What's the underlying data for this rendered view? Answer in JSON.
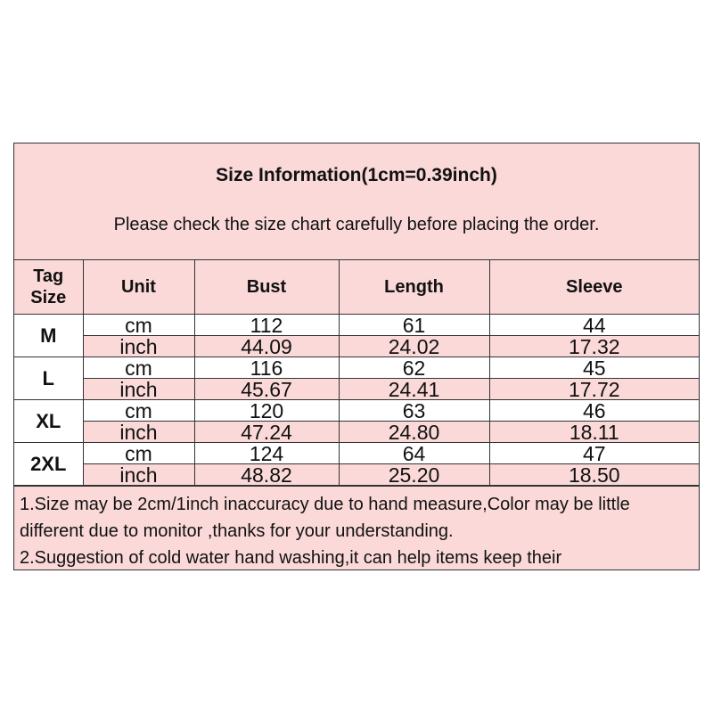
{
  "title": "Size Information(1cm=0.39inch)",
  "subtitle": "Please check the size chart carefully before placing the order.",
  "columns": [
    "Tag Size",
    "Unit",
    "Bust",
    "Length",
    "Sleeve"
  ],
  "rows": [
    {
      "size": "M",
      "cm": [
        "cm",
        "112",
        "61",
        "44"
      ],
      "inch": [
        "inch",
        "44.09",
        "24.02",
        "17.32"
      ]
    },
    {
      "size": "L",
      "cm": [
        "cm",
        "116",
        "62",
        "45"
      ],
      "inch": [
        "inch",
        "45.67",
        "24.41",
        "17.72"
      ]
    },
    {
      "size": "XL",
      "cm": [
        "cm",
        "120",
        "63",
        "46"
      ],
      "inch": [
        "inch",
        "47.24",
        "24.80",
        "18.11"
      ]
    },
    {
      "size": "2XL",
      "cm": [
        "cm",
        "124",
        "64",
        "47"
      ],
      "inch": [
        "inch",
        "48.82",
        "25.20",
        "18.50"
      ]
    }
  ],
  "notes": [
    "1.Size may be 2cm/1inch inaccuracy due to hand measure,Color may be little different due to monitor ,thanks for your understanding.",
    "2.Suggestion of cold water hand washing,it can help items keep their"
  ],
  "colors": {
    "pink": "#fad9d8",
    "border": "#333333"
  }
}
